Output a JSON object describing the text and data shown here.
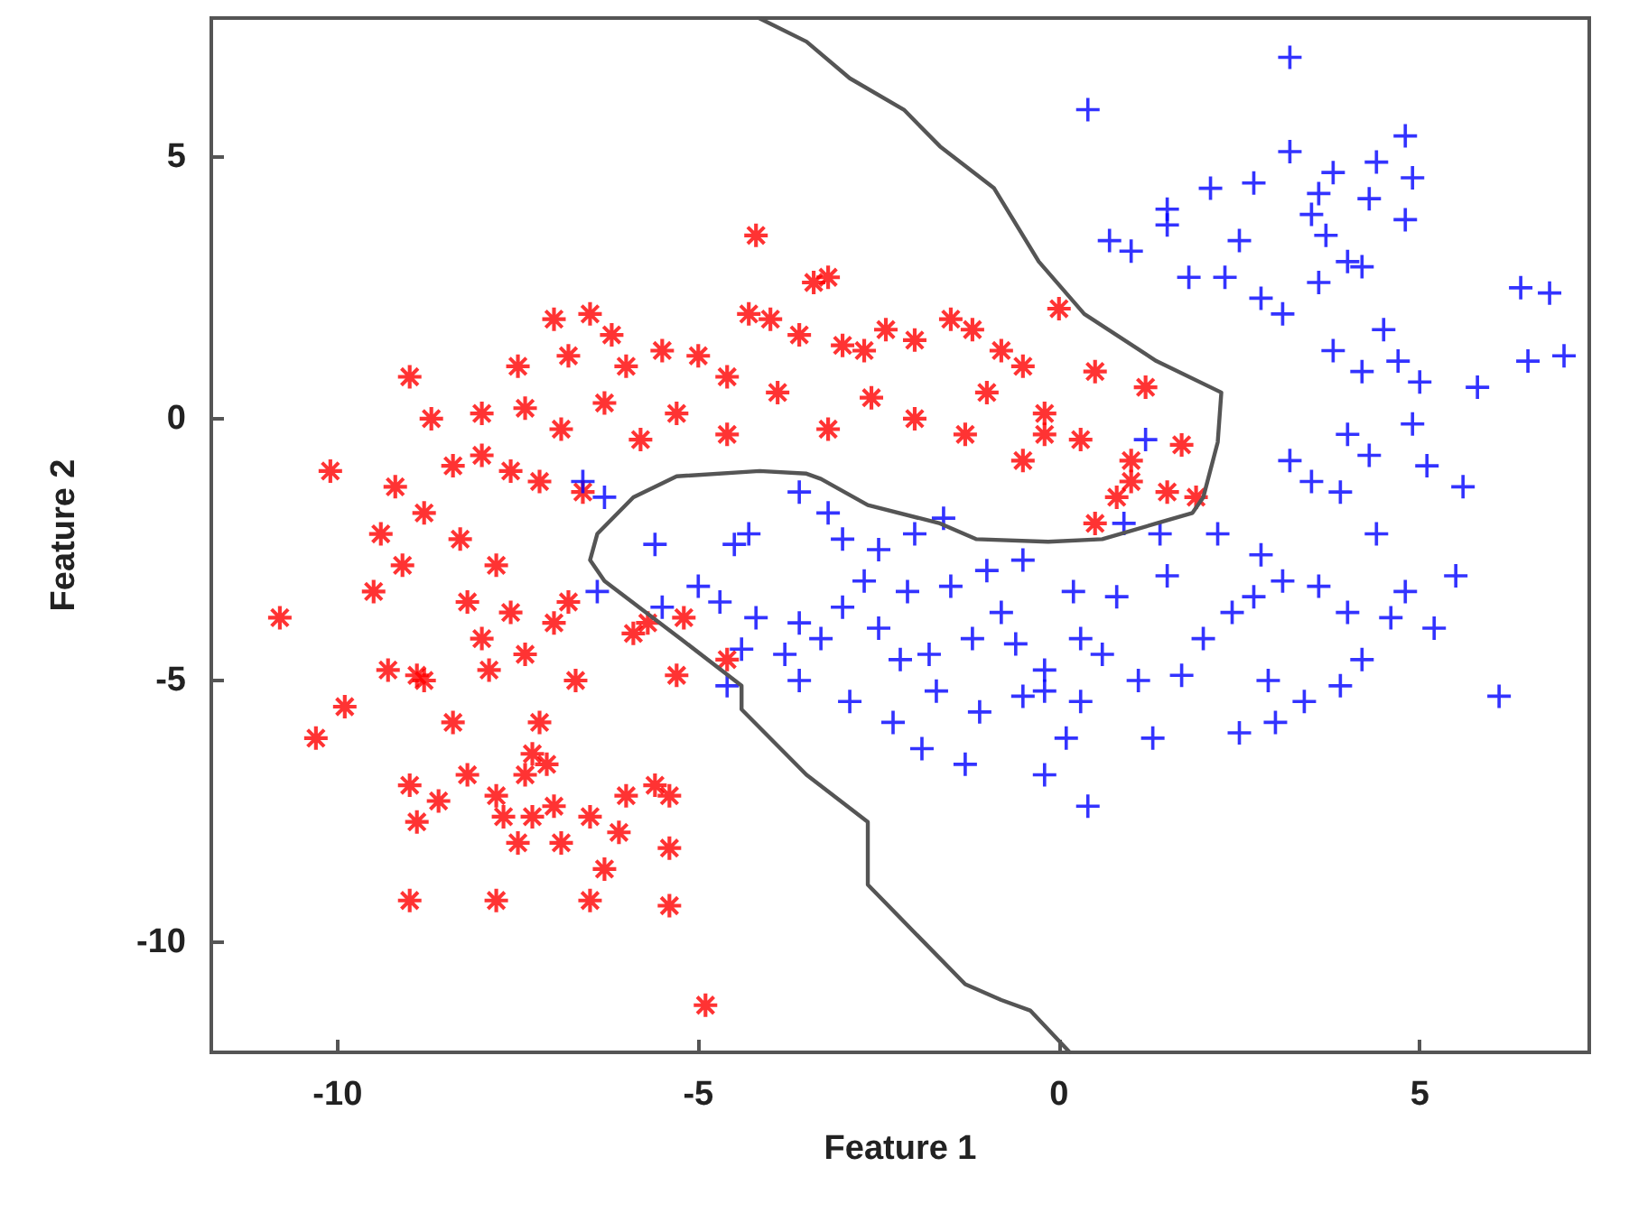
{
  "chart_data": {
    "type": "scatter",
    "xlabel": "Feature 1",
    "ylabel": "Feature 2",
    "xlim": [
      -11.75,
      7.35
    ],
    "ylim": [
      -12.1,
      7.65
    ],
    "xticks": [
      -10,
      -5,
      0,
      5
    ],
    "yticks": [
      -10,
      -5,
      0,
      5
    ],
    "grid": false,
    "series": [
      {
        "color": "#ff0000",
        "marker": "star",
        "x": [
          -7,
          -6.5,
          -6.2,
          -6.8,
          -7.5,
          -6.0,
          -5.5,
          -5.0,
          -4.6,
          -4.3,
          -4.0,
          -4.2,
          -3.4,
          -3.2,
          -3.6,
          -3.0,
          -2.7,
          -2.4,
          -2.0,
          -1.5,
          -1.2,
          -0.8,
          0.0,
          -0.5,
          0.5,
          1.2,
          -1.0,
          -0.2,
          0.3,
          1.0,
          1.7,
          1.5,
          1.9,
          0.8,
          -0.5,
          -1.3,
          -2.0,
          -2.6,
          -3.2,
          -3.9,
          -4.6,
          -5.3,
          -5.8,
          -6.3,
          -6.9,
          -7.4,
          -8.0,
          -8.7,
          -9.0,
          -8.0,
          -7.6,
          -8.4,
          -9.2,
          -10.1,
          -8.8,
          -7.2,
          -6.6,
          1.0,
          0.5,
          -0.2,
          -9.4,
          -9.5,
          -9.1,
          -8.3,
          -7.8,
          -8.2,
          -7.6,
          -8.0,
          -7.4,
          -7.0,
          -6.8,
          -9.3,
          -8.9,
          -10.8,
          -10.3,
          -9.9,
          -8.8,
          -7.9,
          -7.2,
          -6.7,
          -5.7,
          -5.3,
          -5.9,
          -9.0,
          -8.9,
          -8.2,
          -7.8,
          -7.4,
          -7.0,
          -7.3,
          -7.5,
          -6.9,
          -6.5,
          -6.1,
          -6.0,
          -5.6,
          -5.4,
          -5.4,
          -6.3,
          -7.7,
          -8.6,
          -9.0,
          -7.8,
          -6.5,
          -5.4,
          -4.9,
          -4.6,
          -5.2,
          -7.3,
          -7.1,
          -8.4
        ],
        "values": [
          1.9,
          2.0,
          1.6,
          1.2,
          1.0,
          1.0,
          1.3,
          1.2,
          0.8,
          2.0,
          1.9,
          3.5,
          2.6,
          2.7,
          1.6,
          1.4,
          1.3,
          1.7,
          1.5,
          1.9,
          1.7,
          1.3,
          2.1,
          1.0,
          0.9,
          0.6,
          0.5,
          0.1,
          -0.4,
          -0.8,
          -0.5,
          -1.4,
          -1.5,
          -1.5,
          -0.8,
          -0.3,
          0.0,
          0.4,
          -0.2,
          0.5,
          -0.3,
          0.1,
          -0.4,
          0.3,
          -0.2,
          0.2,
          0.1,
          0.0,
          0.8,
          -0.7,
          -1.0,
          -0.9,
          -1.3,
          -1.0,
          -1.8,
          -1.2,
          -1.4,
          -1.2,
          -2.0,
          -0.3,
          -2.2,
          -3.3,
          -2.8,
          -2.3,
          -2.8,
          -3.5,
          -3.7,
          -4.2,
          -4.5,
          -3.9,
          -3.5,
          -4.8,
          -4.9,
          -3.8,
          -6.1,
          -5.5,
          -5.0,
          -4.8,
          -5.8,
          -5.0,
          -3.9,
          -4.9,
          -4.1,
          -7.0,
          -7.7,
          -6.8,
          -7.2,
          -6.8,
          -7.4,
          -7.6,
          -8.1,
          -8.1,
          -7.6,
          -7.9,
          -7.2,
          -7.0,
          -7.2,
          -8.2,
          -8.6,
          -7.6,
          -7.3,
          -9.2,
          -9.2,
          -9.2,
          -9.3,
          -11.2,
          -4.6,
          -3.8,
          -6.4,
          -6.6,
          -5.8
        ]
      },
      {
        "color": "#0000ff",
        "marker": "cross",
        "x": [
          -6.6,
          -6.3,
          -5.6,
          -4.5,
          -4.3,
          -3.6,
          -3.2,
          -3.0,
          -2.5,
          -2.0,
          -1.6,
          -6.4,
          -5.5,
          -5.0,
          -4.7,
          -4.2,
          -3.6,
          -3.0,
          -2.7,
          -2.1,
          -1.5,
          -1.0,
          -0.5,
          0.2,
          0.8,
          -4.4,
          -3.8,
          -3.3,
          -2.5,
          -2.2,
          -1.8,
          -1.2,
          -0.6,
          -0.2,
          0.3,
          -4.6,
          -3.6,
          -2.9,
          -2.3,
          -1.7,
          -1.1,
          -0.5,
          -0.2,
          0.3,
          -1.3,
          -0.2,
          -1.9,
          0.1,
          1.3,
          0.4,
          1.1,
          1.7,
          2.0,
          2.7,
          2.4,
          1.5,
          2.2,
          1.4,
          0.9,
          2.8,
          2.9,
          3.0,
          3.4,
          2.5,
          3.9,
          4.2,
          4.0,
          3.6,
          3.1,
          4.6,
          4.8,
          5.5,
          5.2,
          6.1,
          4.4,
          3.5,
          3.9,
          4.3,
          4.9,
          5.1,
          5.6,
          4.0,
          3.2,
          5.0,
          5.8,
          6.5,
          7.0,
          6.8,
          6.4,
          3.8,
          4.5,
          4.7,
          4.2,
          3.1,
          2.8,
          3.6,
          4.2,
          3.7,
          3.5,
          4.0,
          4.8,
          4.9,
          4.4,
          3.8,
          3.6,
          2.7,
          2.1,
          1.5,
          1.8,
          2.3,
          1.0,
          0.7,
          1.5,
          2.5,
          3.2,
          0.4,
          4.8,
          3.2,
          4.3,
          1.2,
          -0.8,
          0.6
        ],
        "values": [
          -1.2,
          -1.5,
          -2.4,
          -2.4,
          -2.2,
          -1.4,
          -1.8,
          -2.3,
          -2.5,
          -2.2,
          -1.9,
          -3.3,
          -3.6,
          -3.2,
          -3.5,
          -3.8,
          -3.9,
          -3.6,
          -3.1,
          -3.3,
          -3.2,
          -2.9,
          -2.7,
          -3.3,
          -3.4,
          -4.4,
          -4.5,
          -4.2,
          -4.0,
          -4.6,
          -4.5,
          -4.2,
          -4.3,
          -4.8,
          -4.2,
          -5.1,
          -5.0,
          -5.4,
          -5.8,
          -5.2,
          -5.6,
          -5.3,
          -5.2,
          -5.4,
          -6.6,
          -6.8,
          -6.3,
          -6.1,
          -6.1,
          -7.4,
          -5.0,
          -4.9,
          -4.2,
          -3.4,
          -3.7,
          -3.0,
          -2.2,
          -2.2,
          -2.0,
          -2.6,
          -5.0,
          -5.8,
          -5.4,
          -6.0,
          -5.1,
          -4.6,
          -3.7,
          -3.2,
          -3.1,
          -3.8,
          -3.3,
          -3.0,
          -4.0,
          -5.3,
          -2.2,
          -1.2,
          -1.4,
          -0.7,
          -0.1,
          -0.9,
          -1.3,
          -0.3,
          -0.8,
          0.7,
          0.6,
          1.1,
          1.2,
          2.4,
          2.5,
          1.3,
          1.7,
          1.1,
          0.9,
          2.0,
          2.3,
          2.6,
          2.9,
          3.5,
          3.9,
          3.0,
          3.8,
          4.6,
          4.9,
          4.7,
          4.3,
          4.5,
          4.4,
          4.0,
          2.7,
          2.7,
          3.2,
          3.4,
          3.7,
          3.4,
          6.9,
          5.9,
          5.4,
          5.1,
          4.2,
          -0.4,
          -3.7,
          -4.5
        ]
      },
      {
        "type": "line",
        "color": "#555555",
        "marker": "none",
        "x": [
          -4.16,
          -3.5,
          -2.9,
          -2.15,
          -1.65,
          -0.9,
          -0.28,
          0.35,
          1.35,
          2.25,
          2.2,
          2.0,
          1.85,
          1.35,
          0.6,
          -0.15,
          -1.15,
          -1.65,
          -2.65,
          -3.3,
          -3.5,
          -4.15,
          -5.3,
          -5.9,
          -6.4,
          -6.5,
          -6.3,
          -5.2,
          -4.4,
          -4.4,
          -3.5,
          -2.65,
          -2.65,
          -1.3,
          -0.8,
          -0.4,
          0.15
        ],
        "values": [
          7.65,
          7.2,
          6.5,
          5.9,
          5.2,
          4.4,
          3.0,
          2.0,
          1.1,
          0.5,
          -0.45,
          -1.5,
          -1.8,
          -2.0,
          -2.3,
          -2.35,
          -2.3,
          -2.0,
          -1.65,
          -1.15,
          -1.05,
          -1.0,
          -1.1,
          -1.5,
          -2.2,
          -2.7,
          -3.1,
          -4.25,
          -5.1,
          -5.55,
          -6.8,
          -7.7,
          -8.9,
          -10.8,
          -11.1,
          -11.3,
          -12.1
        ]
      }
    ]
  }
}
